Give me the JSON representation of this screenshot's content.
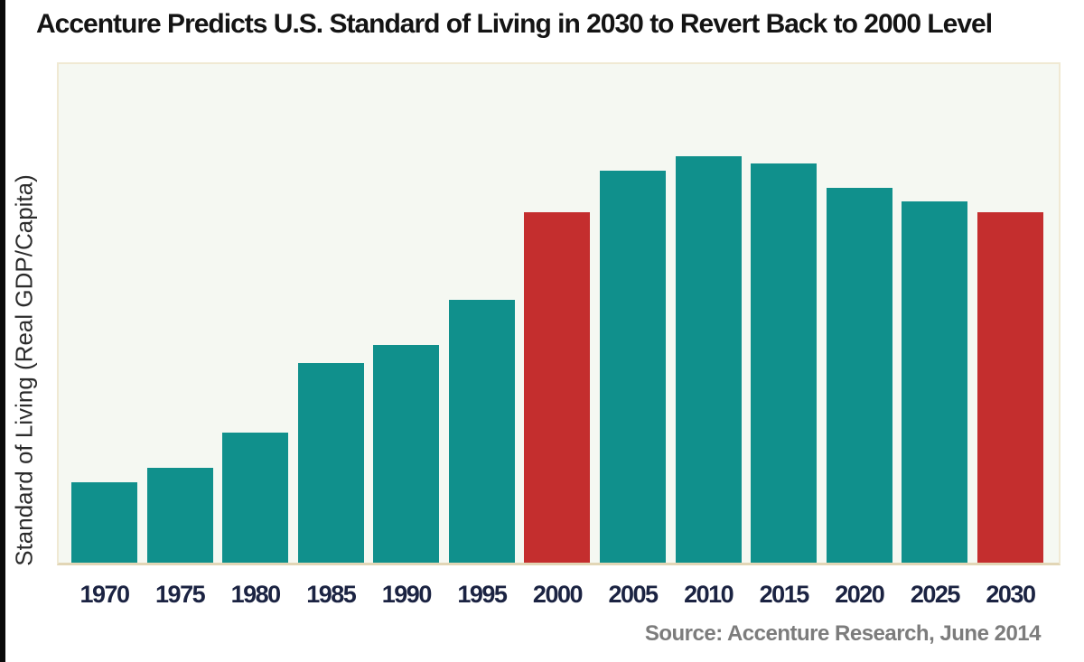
{
  "title": "Accenture Predicts U.S. Standard of Living in 2030 to Revert Back to 2000 Level",
  "y_axis": {
    "label": "Standard of Living (Real GDP/Capita)"
  },
  "source_caption": "Source: Accenture Research, June 2014",
  "colors": {
    "bar_default": "#10908C",
    "bar_highlight": "#C42E2E",
    "tick_label": "#1B2342",
    "title_text": "#141414",
    "source_text": "#7C7C7C",
    "plot_background": "#F5F8F2",
    "plot_border": "#F0E9D3",
    "baseline": "#E2D6B6"
  },
  "chart_data": {
    "type": "bar",
    "title": "Accenture Predicts U.S. Standard of Living in 2030 to Revert Back to 2000 Level",
    "xlabel": "",
    "ylabel": "Standard of Living (Real GDP/Capita)",
    "categories": [
      "1970",
      "1975",
      "1980",
      "1985",
      "1990",
      "1995",
      "2000",
      "2005",
      "2010",
      "2015",
      "2020",
      "2025",
      "2030"
    ],
    "values": [
      23,
      27,
      37,
      57,
      62,
      75,
      100,
      112,
      116,
      114,
      107,
      103,
      100
    ],
    "values_note": "no numeric y-axis shown; values are an index estimated from bar heights with 2000 = 100",
    "highlighted_categories": [
      "2000",
      "2030"
    ],
    "highlight_color_meaning": "red bars mark 2000 and 2030 at equal level",
    "legend": "none",
    "grid": false,
    "ylim": [
      0,
      120
    ]
  }
}
